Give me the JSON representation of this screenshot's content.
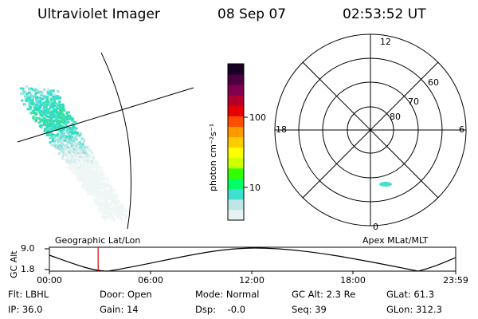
{
  "header": {
    "instrument": "Ultraviolet Imager",
    "date": "08 Sep 07",
    "time": "02:53:52 UT"
  },
  "colorbar": {
    "label": "photon cm⁻²s⁻¹",
    "ticks": [
      "100",
      "10"
    ],
    "scale": "log",
    "colors": [
      "#e6f2f2",
      "#bfe6e6",
      "#40e0d0",
      "#00ff66",
      "#33ff00",
      "#ccff00",
      "#ffff00",
      "#ffcc00",
      "#ff9900",
      "#ff4d00",
      "#e60000",
      "#b3002d",
      "#80004d",
      "#4d0040",
      "#1a0026"
    ]
  },
  "geo_panel": {
    "label": "Geographic Lat/Lon"
  },
  "polar_plot": {
    "label": "Apex MLat/MLT",
    "mlt_labels": {
      "top": "12",
      "left": "18",
      "right": "6",
      "bottom": "0"
    },
    "mlat_labels": [
      "60",
      "70",
      "80"
    ]
  },
  "altitude_strip": {
    "ylabel": "GC Alt",
    "ymax_label": "9.0",
    "ymin_label": "1.8",
    "time_ticks": [
      "00:00",
      "06:00",
      "12:00",
      "18:00",
      "23:59"
    ],
    "current_time_fraction": 0.12,
    "marker_color": "#cc0000"
  },
  "info": {
    "flt": "Flt: LBHL",
    "door": "Door: Open",
    "mode": "Mode: Normal",
    "gc_alt": "GC Alt: 2.3 Re",
    "glat": "GLat:  61.3",
    "ip": "IP: 36.0",
    "gain": "Gain: 14",
    "dsp": "Dsp:    -0.0",
    "seq": "Seq: 39",
    "glon": "GLon: 312.3"
  }
}
